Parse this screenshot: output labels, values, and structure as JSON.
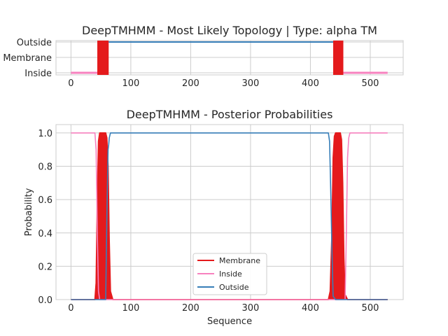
{
  "chart_data": [
    {
      "type": "line",
      "title": "DeepTMHMM - Most Likely Topology | Type: alpha TM",
      "xlabel": "",
      "ylabel": "",
      "xlim": [
        -25,
        555
      ],
      "xticks": [
        0,
        100,
        200,
        300,
        400,
        500
      ],
      "ycategories": [
        "Inside",
        "Membrane",
        "Outside"
      ],
      "grid": true,
      "colors": {
        "Membrane": "#e41a1c",
        "Inside": "#f781bf",
        "Outside": "#377eb8"
      },
      "segments": [
        {
          "label": "Inside",
          "start": 0,
          "end": 44
        },
        {
          "label": "Membrane",
          "start": 44,
          "end": 63
        },
        {
          "label": "Outside",
          "start": 63,
          "end": 438
        },
        {
          "label": "Membrane",
          "start": 438,
          "end": 455
        },
        {
          "label": "Inside",
          "start": 455,
          "end": 529
        }
      ]
    },
    {
      "type": "line",
      "title": "DeepTMHMM - Posterior Probabilities",
      "xlabel": "Sequence",
      "ylabel": "Probability",
      "xlim": [
        -25,
        555
      ],
      "ylim": [
        0.0,
        1.05
      ],
      "xticks": [
        0,
        100,
        200,
        300,
        400,
        500
      ],
      "yticks": [
        "0.0",
        "0.2",
        "0.4",
        "0.6",
        "0.8",
        "1.0"
      ],
      "grid": true,
      "legend": "bottom-center",
      "series": [
        {
          "name": "Membrane",
          "color": "#e41a1c",
          "x": [
            0,
            40,
            42,
            44,
            46,
            48,
            50,
            58,
            60,
            62,
            64,
            66,
            70,
            430,
            433,
            436,
            438,
            440,
            442,
            450,
            452,
            454,
            456,
            458,
            462,
            529
          ],
          "y": [
            0,
            0,
            0.1,
            0.6,
            0.95,
            1.0,
            1.0,
            1.0,
            0.97,
            0.8,
            0.35,
            0.05,
            0,
            0,
            0.05,
            0.4,
            0.85,
            0.98,
            1.0,
            1.0,
            0.96,
            0.7,
            0.25,
            0.03,
            0,
            0
          ]
        },
        {
          "name": "Inside",
          "color": "#f781bf",
          "x": [
            0,
            40,
            42,
            44,
            46,
            48,
            52,
            458,
            460,
            462,
            464,
            466,
            529
          ],
          "y": [
            1.0,
            1.0,
            0.9,
            0.4,
            0.05,
            0,
            0,
            0,
            0.4,
            0.85,
            0.97,
            1.0,
            1.0
          ],
          "note": ""
        },
        {
          "name": "Outside",
          "color": "#377eb8",
          "x": [
            0,
            58,
            60,
            62,
            63,
            64,
            66,
            430,
            432,
            434,
            436,
            438,
            442,
            529
          ],
          "y": [
            0,
            0,
            0.5,
            0.9,
            0.93,
            0.97,
            1.0,
            1.0,
            0.95,
            0.65,
            0.3,
            0.02,
            0,
            0
          ]
        }
      ]
    }
  ]
}
